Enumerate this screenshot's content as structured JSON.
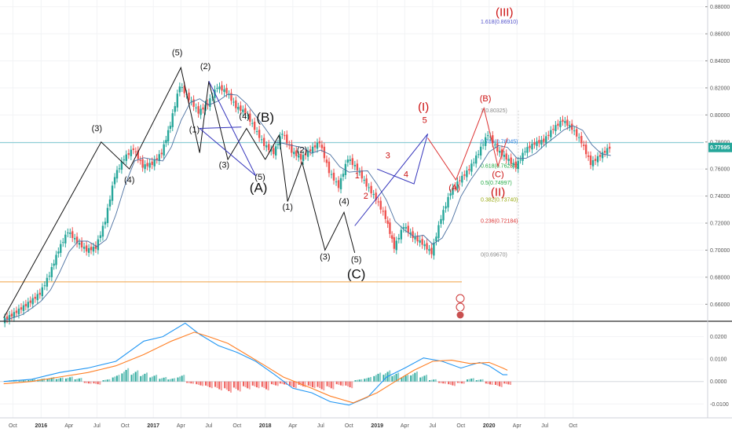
{
  "chart_data": [
    {
      "type": "candlestick",
      "y_ticks": [
        "0.88000",
        "0.86000",
        "0.84000",
        "0.82000",
        "0.80000",
        "0.78000",
        "0.76000",
        "0.74000",
        "0.72000",
        "0.70000",
        "0.68000",
        "0.66000"
      ],
      "ylim": [
        0.648,
        0.885
      ],
      "x_ticks": [
        "Oct",
        "2016",
        "Apr",
        "Jul",
        "Oct",
        "2017",
        "Apr",
        "Jul",
        "Oct",
        "2018",
        "Apr",
        "Jul",
        "Oct",
        "2019",
        "Apr",
        "Jul",
        "Oct",
        "2020",
        "Apr",
        "Jul",
        "Oct"
      ],
      "bold_x_ticks": [
        "2016",
        "2017",
        "2018",
        "2019",
        "2020"
      ],
      "current_price": {
        "label": "0.77595",
        "value": 0.77595,
        "color": "#26a69a"
      },
      "horizontal_lines": [
        {
          "value": 0.7795,
          "color": "#7ec8d0"
        },
        {
          "value": 0.6765,
          "color": "#f0a040"
        }
      ],
      "up_color": "#26a69a",
      "down_color": "#ef5350",
      "price_path": [
        [
          "2015-09-01",
          0.648
        ],
        [
          "2015-10-01",
          0.652
        ],
        [
          "2015-11-01",
          0.657
        ],
        [
          "2015-12-01",
          0.662
        ],
        [
          "2016-01-01",
          0.668
        ],
        [
          "2016-02-01",
          0.682
        ],
        [
          "2016-03-01",
          0.7
        ],
        [
          "2016-04-01",
          0.714
        ],
        [
          "2016-05-01",
          0.706
        ],
        [
          "2016-06-01",
          0.7
        ],
        [
          "2016-07-01",
          0.702
        ],
        [
          "2016-08-01",
          0.722
        ],
        [
          "2016-09-01",
          0.755
        ],
        [
          "2016-10-01",
          0.768
        ],
        [
          "2016-11-01",
          0.775
        ],
        [
          "2016-12-01",
          0.762
        ],
        [
          "2017-01-01",
          0.764
        ],
        [
          "2017-02-01",
          0.772
        ],
        [
          "2017-03-01",
          0.793
        ],
        [
          "2017-04-01",
          0.822
        ],
        [
          "2017-05-01",
          0.812
        ],
        [
          "2017-06-01",
          0.802
        ],
        [
          "2017-07-01",
          0.808
        ],
        [
          "2017-08-01",
          0.821
        ],
        [
          "2017-09-01",
          0.817
        ],
        [
          "2017-10-01",
          0.806
        ],
        [
          "2017-11-01",
          0.802
        ],
        [
          "2017-12-01",
          0.79
        ],
        [
          "2018-01-01",
          0.778
        ],
        [
          "2018-02-01",
          0.772
        ],
        [
          "2018-03-01",
          0.787
        ],
        [
          "2018-04-01",
          0.773
        ],
        [
          "2018-05-01",
          0.768
        ],
        [
          "2018-06-01",
          0.774
        ],
        [
          "2018-07-01",
          0.78
        ],
        [
          "2018-08-01",
          0.758
        ],
        [
          "2018-09-01",
          0.747
        ],
        [
          "2018-10-01",
          0.768
        ],
        [
          "2018-11-01",
          0.76
        ],
        [
          "2018-12-01",
          0.748
        ],
        [
          "2019-01-01",
          0.738
        ],
        [
          "2019-02-01",
          0.724
        ],
        [
          "2019-03-01",
          0.702
        ],
        [
          "2019-04-01",
          0.718
        ],
        [
          "2019-05-01",
          0.71
        ],
        [
          "2019-06-01",
          0.705
        ],
        [
          "2019-07-01",
          0.698
        ],
        [
          "2019-08-01",
          0.724
        ],
        [
          "2019-09-01",
          0.743
        ],
        [
          "2019-10-01",
          0.752
        ],
        [
          "2019-11-01",
          0.76
        ],
        [
          "2019-12-01",
          0.772
        ],
        [
          "2020-01-01",
          0.786
        ],
        [
          "2020-02-01",
          0.774
        ],
        [
          "2020-03-01",
          0.768
        ],
        [
          "2020-04-01",
          0.762
        ],
        [
          "2020-05-01",
          0.774
        ],
        [
          "2020-06-01",
          0.779
        ],
        [
          "2020-07-01",
          0.781
        ],
        [
          "2020-08-01",
          0.79
        ],
        [
          "2020-09-01",
          0.796
        ],
        [
          "2020-10-01",
          0.79
        ],
        [
          "2020-11-01",
          0.78
        ],
        [
          "2020-12-01",
          0.764
        ],
        [
          "2021-01-01",
          0.77
        ],
        [
          "2021-02-01",
          0.776
        ]
      ],
      "wave_lines": [
        {
          "color": "#111111",
          "points": [
            [
              "2015-09-01",
              0.65
            ],
            [
              "2016-07-15",
              0.78
            ],
            [
              "2016-10-15",
              0.76
            ],
            [
              "2017-04-01",
              0.835
            ],
            [
              "2017-06-01",
              0.772
            ],
            [
              "2017-07-01",
              0.825
            ],
            [
              "2017-09-01",
              0.767
            ],
            [
              "2017-11-01",
              0.79
            ],
            [
              "2018-01-01",
              0.767
            ]
          ]
        },
        {
          "color": "#111111",
          "points": [
            [
              "2018-01-01",
              0.767
            ],
            [
              "2018-02-15",
              0.785
            ],
            [
              "2018-03-15",
              0.736
            ],
            [
              "2018-05-01",
              0.765
            ],
            [
              "2018-07-15",
              0.7
            ],
            [
              "2018-09-15",
              0.728
            ],
            [
              "2018-10-20",
              0.698
            ]
          ]
        },
        {
          "color": "#3333bb",
          "points": [
            [
              "2017-07-01",
              0.825
            ],
            [
              "2017-12-01",
              0.755
            ],
            [
              "2017-06-01",
              0.79
            ],
            [
              "2017-10-15",
              0.791
            ]
          ]
        },
        {
          "color": "#3333bb",
          "points": [
            [
              "2018-10-20",
              0.718
            ],
            [
              "2019-06-15",
              0.786
            ],
            [
              "2019-05-01",
              0.749
            ],
            [
              "2019-01-01",
              0.76
            ]
          ]
        },
        {
          "color": "#dd3333",
          "points": [
            [
              "2019-06-15",
              0.783
            ],
            [
              "2019-09-15",
              0.752
            ],
            [
              "2019-12-15",
              0.805
            ],
            [
              "2020-01-30",
              0.762
            ],
            [
              "2020-03-01",
              0.783
            ]
          ]
        }
      ],
      "fib_levels": [
        {
          "label": "1.618(0.86910)",
          "value": 0.8691,
          "color": "#5555cc"
        },
        {
          "label": "1(0.80325)",
          "value": 0.80325,
          "color": "#888888"
        },
        {
          "label": "0.786(0.78045)",
          "value": 0.78045,
          "color": "#2d7ee0"
        },
        {
          "label": "0.618(0.76254)",
          "value": 0.76254,
          "color": "#22aa44"
        },
        {
          "label": "0.5(0.74997)",
          "value": 0.74997,
          "color": "#22aa44"
        },
        {
          "label": "0.382(0.73740)",
          "value": 0.7374,
          "color": "#99aa11"
        },
        {
          "label": "0.236(0.72184)",
          "value": 0.72184,
          "color": "#dd3333"
        },
        {
          "label": "0(0.69670)",
          "value": 0.6967,
          "color": "#888888"
        }
      ],
      "wave_labels": [
        {
          "text": "(3)",
          "t": "2016-07-01",
          "v": 0.788,
          "cls": "wave-k"
        },
        {
          "text": "(4)",
          "t": "2016-10-15",
          "v": 0.75,
          "cls": "wave-k"
        },
        {
          "text": "(5)",
          "t": "2017-03-20",
          "v": 0.844,
          "cls": "wave-k"
        },
        {
          "text": "(1)",
          "t": "2017-05-15",
          "v": 0.787,
          "cls": "wave-k"
        },
        {
          "text": "(2)",
          "t": "2017-06-20",
          "v": 0.834,
          "cls": "wave-k"
        },
        {
          "text": "(3)",
          "t": "2017-08-20",
          "v": 0.761,
          "cls": "wave-k"
        },
        {
          "text": "(4)",
          "t": "2017-10-25",
          "v": 0.797,
          "cls": "wave-k"
        },
        {
          "text": "(5)",
          "t": "2017-12-15",
          "v": 0.752,
          "cls": "wave-k"
        },
        {
          "text": "(A)",
          "t": "2017-12-10",
          "v": 0.743,
          "cls": "wave-kb"
        },
        {
          "text": "(B)",
          "t": "2018-01-01",
          "v": 0.795,
          "cls": "wave-kb"
        },
        {
          "text": "(1)",
          "t": "2018-03-15",
          "v": 0.73,
          "cls": "wave-k"
        },
        {
          "text": "(2)",
          "t": "2018-05-01",
          "v": 0.772,
          "cls": "wave-k"
        },
        {
          "text": "(3)",
          "t": "2018-07-15",
          "v": 0.693,
          "cls": "wave-k"
        },
        {
          "text": "(4)",
          "t": "2018-09-15",
          "v": 0.734,
          "cls": "wave-k"
        },
        {
          "text": "(5)",
          "t": "2018-10-25",
          "v": 0.691,
          "cls": "wave-k"
        },
        {
          "text": "(C)",
          "t": "2018-10-25",
          "v": 0.679,
          "cls": "wave-kb"
        },
        {
          "text": "1",
          "t": "2018-10-28",
          "v": 0.753,
          "cls": "wave-r"
        },
        {
          "text": "2",
          "t": "2018-11-25",
          "v": 0.738,
          "cls": "wave-r"
        },
        {
          "text": "3",
          "t": "2019-02-05",
          "v": 0.768,
          "cls": "wave-r"
        },
        {
          "text": "4",
          "t": "2019-04-05",
          "v": 0.754,
          "cls": "wave-r"
        },
        {
          "text": "5",
          "t": "2019-06-05",
          "v": 0.794,
          "cls": "wave-r"
        },
        {
          "text": "(I)",
          "t": "2019-06-01",
          "v": 0.803,
          "cls": "wave-rb"
        },
        {
          "text": "(A)",
          "t": "2019-09-10",
          "v": 0.744,
          "cls": "wave-r"
        },
        {
          "text": "(B)",
          "t": "2019-12-20",
          "v": 0.81,
          "cls": "wave-r"
        },
        {
          "text": "(C)",
          "t": "2020-01-30",
          "v": 0.754,
          "cls": "wave-r"
        },
        {
          "text": "(II)",
          "t": "2020-01-30",
          "v": 0.74,
          "cls": "wave-rb"
        },
        {
          "text": "(III)",
          "t": "2020-02-20",
          "v": 0.873,
          "cls": "wave-rb"
        }
      ]
    },
    {
      "type": "macd",
      "y_ticks": [
        "0.0200",
        "0.0100",
        "0.0000",
        "-0.0100"
      ],
      "ylim": [
        -0.0155,
        0.0265
      ],
      "hist_up_color": "#26a69a",
      "hist_down_color": "#ef5350",
      "macd_line_color": "#2196f3",
      "signal_line_color": "#ff7f24",
      "macd_line": [
        [
          "2015-09-01",
          0.0
        ],
        [
          "2015-12-01",
          0.001
        ],
        [
          "2016-03-01",
          0.004
        ],
        [
          "2016-06-01",
          0.006
        ],
        [
          "2016-09-01",
          0.009
        ],
        [
          "2016-12-01",
          0.018
        ],
        [
          "2017-02-01",
          0.02
        ],
        [
          "2017-04-15",
          0.026
        ],
        [
          "2017-06-01",
          0.021
        ],
        [
          "2017-08-01",
          0.016
        ],
        [
          "2017-10-01",
          0.013
        ],
        [
          "2017-12-01",
          0.009
        ],
        [
          "2018-02-01",
          0.003
        ],
        [
          "2018-04-01",
          -0.003
        ],
        [
          "2018-06-01",
          -0.005
        ],
        [
          "2018-08-01",
          -0.009
        ],
        [
          "2018-10-01",
          -0.0105
        ],
        [
          "2018-12-01",
          -0.007
        ],
        [
          "2019-02-01",
          0.002
        ],
        [
          "2019-04-01",
          0.006
        ],
        [
          "2019-06-01",
          0.0105
        ],
        [
          "2019-08-01",
          0.009
        ],
        [
          "2019-10-01",
          0.006
        ],
        [
          "2019-12-01",
          0.0085
        ],
        [
          "2020-01-01",
          0.007
        ],
        [
          "2020-02-15",
          0.003
        ],
        [
          "2020-03-01",
          0.003
        ]
      ],
      "signal_line": [
        [
          "2015-09-01",
          -0.001
        ],
        [
          "2015-12-01",
          0.0
        ],
        [
          "2016-03-01",
          0.002
        ],
        [
          "2016-06-01",
          0.004
        ],
        [
          "2016-09-01",
          0.007
        ],
        [
          "2016-12-01",
          0.012
        ],
        [
          "2017-03-01",
          0.018
        ],
        [
          "2017-05-15",
          0.022
        ],
        [
          "2017-07-01",
          0.02
        ],
        [
          "2017-09-01",
          0.017
        ],
        [
          "2017-11-01",
          0.012
        ],
        [
          "2018-01-01",
          0.007
        ],
        [
          "2018-03-01",
          0.002
        ],
        [
          "2018-06-01",
          -0.003
        ],
        [
          "2018-08-01",
          -0.0065
        ],
        [
          "2018-10-15",
          -0.0095
        ],
        [
          "2019-01-01",
          -0.005
        ],
        [
          "2019-03-01",
          0.0
        ],
        [
          "2019-05-01",
          0.005
        ],
        [
          "2019-07-01",
          0.009
        ],
        [
          "2019-09-01",
          0.0095
        ],
        [
          "2019-11-01",
          0.008
        ],
        [
          "2020-01-01",
          0.0085
        ],
        [
          "2020-02-15",
          0.006
        ],
        [
          "2020-03-01",
          0.005
        ]
      ],
      "histogram": [
        [
          "2015-10-01",
          0.0008
        ],
        [
          "2015-11-01",
          0.0006
        ],
        [
          "2015-12-01",
          0.001
        ],
        [
          "2016-01-01",
          0.0014
        ],
        [
          "2016-02-01",
          0.002
        ],
        [
          "2016-03-01",
          0.0018
        ],
        [
          "2016-04-01",
          0.0022
        ],
        [
          "2016-05-01",
          0.0016
        ],
        [
          "2016-06-01",
          -0.001
        ],
        [
          "2016-07-01",
          -0.0014
        ],
        [
          "2016-08-01",
          0.001
        ],
        [
          "2016-09-01",
          0.003
        ],
        [
          "2016-10-01",
          0.006
        ],
        [
          "2016-11-01",
          0.005
        ],
        [
          "2016-12-01",
          0.004
        ],
        [
          "2017-01-01",
          0.003
        ],
        [
          "2017-02-01",
          0.002
        ],
        [
          "2017-03-01",
          0.0015
        ],
        [
          "2017-04-01",
          0.003
        ],
        [
          "2017-05-01",
          -0.001
        ],
        [
          "2017-06-01",
          -0.002
        ],
        [
          "2017-07-01",
          -0.003
        ],
        [
          "2017-08-01",
          -0.004
        ],
        [
          "2017-09-01",
          -0.005
        ],
        [
          "2017-10-01",
          -0.0045
        ],
        [
          "2017-11-01",
          -0.0035
        ],
        [
          "2017-12-01",
          -0.003
        ],
        [
          "2018-01-01",
          -0.004
        ],
        [
          "2018-02-01",
          -0.002
        ],
        [
          "2018-03-01",
          -0.0015
        ],
        [
          "2018-04-01",
          -0.003
        ],
        [
          "2018-05-01",
          -0.0025
        ],
        [
          "2018-06-01",
          -0.003
        ],
        [
          "2018-07-01",
          -0.004
        ],
        [
          "2018-08-01",
          -0.0035
        ],
        [
          "2018-09-01",
          -0.002
        ],
        [
          "2018-10-01",
          -0.003
        ],
        [
          "2018-11-01",
          0.001
        ],
        [
          "2018-12-01",
          0.002
        ],
        [
          "2019-01-01",
          0.004
        ],
        [
          "2019-02-01",
          0.005
        ],
        [
          "2019-03-01",
          0.004
        ],
        [
          "2019-04-01",
          0.003
        ],
        [
          "2019-05-01",
          0.0045
        ],
        [
          "2019-06-01",
          0.003
        ],
        [
          "2019-07-01",
          0.001
        ],
        [
          "2019-08-01",
          -0.001
        ],
        [
          "2019-09-01",
          -0.002
        ],
        [
          "2019-10-01",
          -0.001
        ],
        [
          "2019-11-01",
          0.0015
        ],
        [
          "2019-12-01",
          0.001
        ],
        [
          "2020-01-01",
          -0.0015
        ],
        [
          "2020-02-01",
          -0.0025
        ],
        [
          "2020-03-01",
          -0.0015
        ]
      ]
    }
  ]
}
